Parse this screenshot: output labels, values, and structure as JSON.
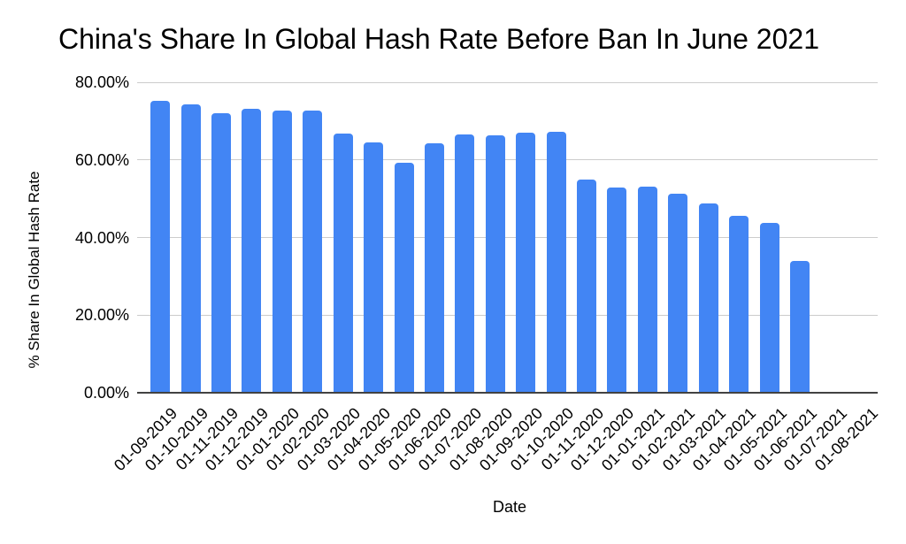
{
  "chart_data": {
    "type": "bar",
    "title": "China's Share In Global Hash Rate Before Ban In June 2021",
    "xlabel": "Date",
    "ylabel": "% Share In Global Hash Rate",
    "ylim": [
      0,
      80
    ],
    "ytick_values": [
      0,
      20,
      40,
      60,
      80
    ],
    "ytick_labels": [
      "0.00%",
      "20.00%",
      "40.00%",
      "60.00%",
      "80.00%"
    ],
    "grid": true,
    "legend": "none",
    "categories": [
      "01-09-2019",
      "01-10-2019",
      "01-11-2019",
      "01-12-2019",
      "01-01-2020",
      "01-02-2020",
      "01-03-2020",
      "01-04-2020",
      "01-05-2020",
      "01-06-2020",
      "01-07-2020",
      "01-08-2020",
      "01-09-2020",
      "01-10-2020",
      "01-11-2020",
      "01-12-2020",
      "01-01-2021",
      "01-02-2021",
      "01-03-2021",
      "01-04-2021",
      "01-05-2021",
      "01-06-2021",
      "01-07-2021",
      "01-08-2021"
    ],
    "values": [
      75.2,
      74.3,
      72.1,
      73.2,
      72.6,
      72.6,
      66.8,
      64.6,
      59.2,
      64.2,
      66.5,
      66.4,
      66.9,
      67.2,
      55.0,
      52.9,
      53.0,
      51.2,
      48.8,
      45.6,
      43.8,
      33.9,
      0,
      0
    ]
  },
  "colors": {
    "bar": "#4285f4",
    "gridline": "#cccccc",
    "axis_line": "#424242",
    "text": "#000000",
    "background": "#ffffff"
  }
}
